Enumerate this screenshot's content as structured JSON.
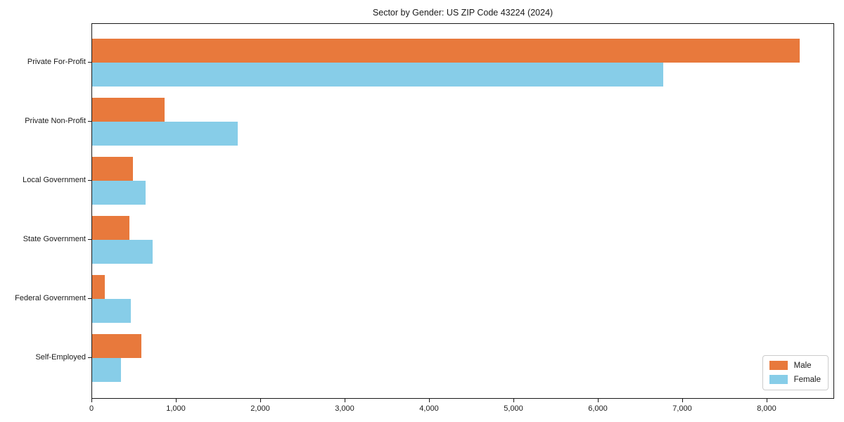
{
  "title": "Sector by Gender: US ZIP Code 43224 (2024)",
  "colors": {
    "male": "#e8793c",
    "female": "#87cde8",
    "axis": "#1a1a1a",
    "legend_border": "#cccccc",
    "background": "#ffffff"
  },
  "legend": {
    "position": "lower right",
    "items": [
      {
        "label": "Male"
      },
      {
        "label": "Female"
      }
    ]
  },
  "chart_data": {
    "type": "bar",
    "orientation": "horizontal",
    "title": "Sector by Gender: US ZIP Code 43224 (2024)",
    "categories": [
      "Private For-Profit",
      "Private Non-Profit",
      "Local Government",
      "State Government",
      "Federal Government",
      "Self-Employed"
    ],
    "series": [
      {
        "name": "Male",
        "color": "#e8793c",
        "values": [
          8380,
          860,
          480,
          445,
          150,
          585
        ]
      },
      {
        "name": "Female",
        "color": "#87cde8",
        "values": [
          6770,
          1725,
          630,
          715,
          455,
          340
        ]
      }
    ],
    "xlabel": "",
    "ylabel": "",
    "xlim": [
      0,
      8800
    ],
    "xticks": [
      0,
      1000,
      2000,
      3000,
      4000,
      5000,
      6000,
      7000,
      8000
    ],
    "xtick_labels": [
      "0",
      "1,000",
      "2,000",
      "3,000",
      "4,000",
      "5,000",
      "6,000",
      "7,000",
      "8,000"
    ],
    "grid": false,
    "legend_position": "lower right"
  }
}
